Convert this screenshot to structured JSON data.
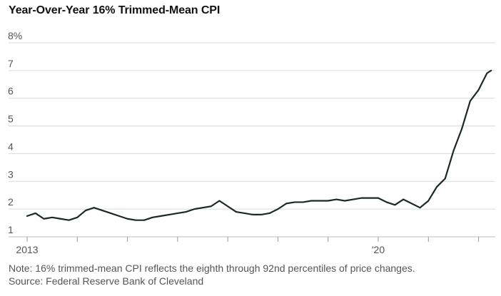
{
  "chart_data": {
    "type": "line",
    "title": "Year-Over-Year 16% Trimmed-Mean CPI",
    "xlabel": "",
    "ylabel": "",
    "ylim": [
      1,
      8
    ],
    "yticks": [
      1,
      2,
      3,
      4,
      5,
      6,
      7,
      8
    ],
    "ytick_labels": [
      "1",
      "2",
      "3",
      "4",
      "5",
      "6",
      "7",
      "8%"
    ],
    "xlim": [
      "2013-01",
      "2022-05"
    ],
    "xticks": [
      "2013-01",
      "2014-01",
      "2015-01",
      "2016-01",
      "2017-01",
      "2018-01",
      "2019-01",
      "2020-01",
      "2021-01",
      "2022-01"
    ],
    "xtick_labels": [
      "2013",
      "",
      "",
      "",
      "",
      "",
      "",
      "'20",
      "",
      ""
    ],
    "grid": "horizontal",
    "line_color": "#1a2a23",
    "series": [
      {
        "x": [
          "2013-01",
          "2013-03",
          "2013-05",
          "2013-07",
          "2013-09",
          "2013-11",
          "2014-01",
          "2014-03",
          "2014-05",
          "2014-07",
          "2014-09",
          "2014-11",
          "2015-01",
          "2015-03",
          "2015-05",
          "2015-07",
          "2015-09",
          "2015-11",
          "2016-01",
          "2016-03",
          "2016-05",
          "2016-07",
          "2016-09",
          "2016-11",
          "2017-01",
          "2017-03",
          "2017-05",
          "2017-07",
          "2017-09",
          "2017-11",
          "2018-01",
          "2018-03",
          "2018-05",
          "2018-07",
          "2018-09",
          "2018-11",
          "2019-01",
          "2019-03",
          "2019-05",
          "2019-07",
          "2019-09",
          "2019-11",
          "2020-01",
          "2020-03",
          "2020-05",
          "2020-07",
          "2020-09",
          "2020-11",
          "2021-01",
          "2021-03",
          "2021-05",
          "2021-07",
          "2021-09",
          "2021-11",
          "2022-01",
          "2022-03",
          "2022-04"
        ],
        "values": [
          1.75,
          1.85,
          1.65,
          1.7,
          1.65,
          1.6,
          1.7,
          1.95,
          2.05,
          1.95,
          1.85,
          1.75,
          1.65,
          1.6,
          1.6,
          1.7,
          1.75,
          1.8,
          1.85,
          1.9,
          2.0,
          2.05,
          2.1,
          2.3,
          2.1,
          1.9,
          1.85,
          1.8,
          1.8,
          1.85,
          2.0,
          2.2,
          2.25,
          2.25,
          2.3,
          2.3,
          2.3,
          2.35,
          2.3,
          2.35,
          2.4,
          2.4,
          2.4,
          2.25,
          2.15,
          2.35,
          2.2,
          2.05,
          2.3,
          2.8,
          3.1,
          4.1,
          4.9,
          5.9,
          6.3,
          6.9,
          7.0
        ]
      }
    ]
  },
  "footnotes": {
    "note": "Note: 16% trimmed-mean CPI reflects the eighth through 92nd percentiles of price changes.",
    "source": "Source: Federal Reserve Bank of Cleveland"
  }
}
